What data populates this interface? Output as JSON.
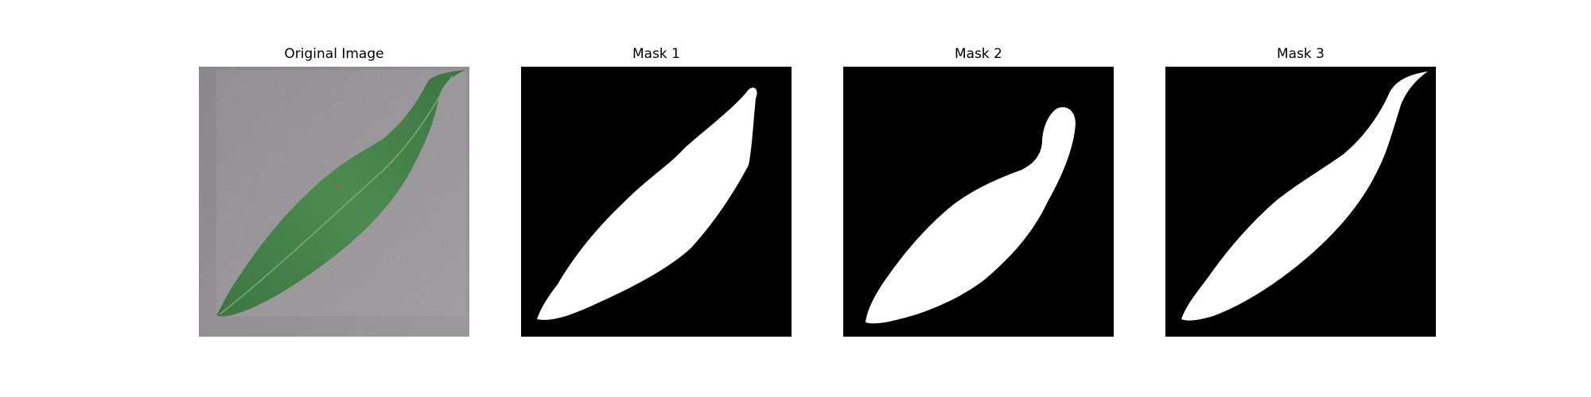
{
  "figure": {
    "panels": [
      {
        "title": "Original Image",
        "kind": "photo",
        "subject": "leaf-photo"
      },
      {
        "title": "Mask 1",
        "kind": "mask",
        "subject": "leaf-mask"
      },
      {
        "title": "Mask 2",
        "kind": "mask",
        "subject": "leaf-mask"
      },
      {
        "title": "Mask 3",
        "kind": "mask",
        "subject": "leaf-mask"
      }
    ],
    "colors": {
      "photo_background": "#8c8a8d",
      "leaf": "#4a8a4e",
      "leaf_dark": "#3b733f",
      "leaf_vein": "#7fae7b",
      "mask_background": "#000000",
      "mask_foreground": "#ffffff"
    }
  }
}
